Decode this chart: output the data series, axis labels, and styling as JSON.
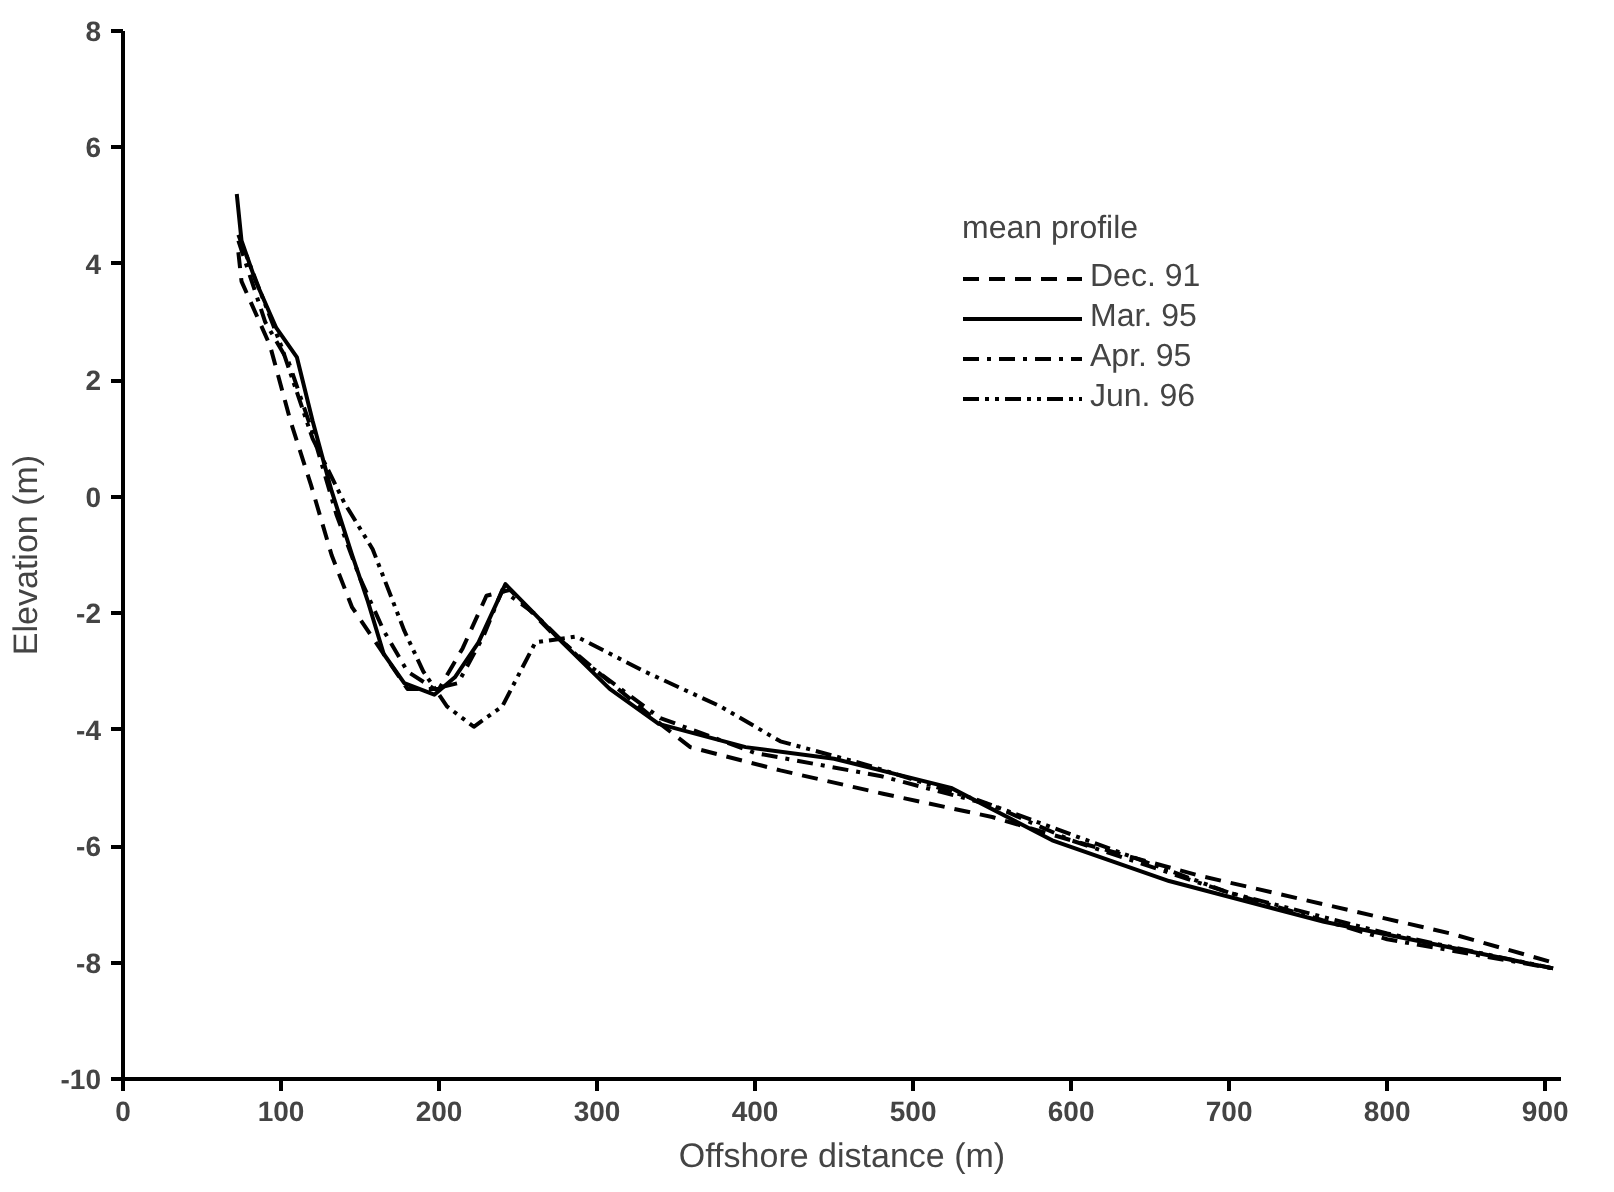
{
  "chart_data": {
    "type": "line",
    "xlabel": "Offshore distance (m)",
    "ylabel": "Elevation (m)",
    "legend_title": "mean profile",
    "xlim": [
      0,
      910
    ],
    "ylim": [
      -10,
      8
    ],
    "xticks": [
      0,
      100,
      200,
      300,
      400,
      500,
      600,
      700,
      800,
      900
    ],
    "yticks": [
      -10,
      -8,
      -6,
      -4,
      -2,
      0,
      2,
      4,
      6,
      8
    ],
    "grid": false,
    "legend": "top right",
    "marker": "none",
    "series": [
      {
        "name": "Dec. 91",
        "color": "#000000",
        "line_style": "dashed",
        "x": [
          73,
          75,
          93,
          106,
          119,
          132,
          145,
          160,
          180,
          200,
          215,
          230,
          245,
          270,
          300,
          340,
          359,
          416,
          481,
          550,
          600,
          680,
          760,
          840,
          905
        ],
        "values": [
          4.2,
          3.7,
          2.6,
          1.3,
          0.2,
          -1.0,
          -1.9,
          -2.5,
          -3.3,
          -3.3,
          -2.6,
          -1.7,
          -1.6,
          -2.3,
          -3.0,
          -3.9,
          -4.3,
          -4.7,
          -5.1,
          -5.5,
          -5.9,
          -6.5,
          -7.0,
          -7.5,
          -8.0
        ]
      },
      {
        "name": "Mar. 95",
        "color": "#000000",
        "line_style": "solid",
        "x": [
          72,
          75,
          84,
          97,
          110,
          120,
          132,
          145,
          155,
          165,
          178,
          197,
          210,
          225,
          242,
          260,
          278,
          308,
          339,
          394,
          450,
          524,
          588,
          662,
          760,
          905
        ],
        "values": [
          5.2,
          4.4,
          3.7,
          2.9,
          2.4,
          1.3,
          0.1,
          -1.0,
          -1.8,
          -2.7,
          -3.2,
          -3.4,
          -3.1,
          -2.5,
          -1.5,
          -2.0,
          -2.5,
          -3.3,
          -3.9,
          -4.3,
          -4.5,
          -5.0,
          -5.9,
          -6.6,
          -7.3,
          -8.1
        ]
      },
      {
        "name": "Apr. 95",
        "color": "#000000",
        "line_style": "dashdot",
        "x": [
          73,
          90,
          105,
          120,
          135,
          150,
          165,
          180,
          197,
          212,
          228,
          240,
          260,
          290,
          340,
          400,
          480,
          550,
          600,
          700,
          800,
          905
        ],
        "values": [
          4.4,
          3.0,
          2.3,
          1.1,
          -0.3,
          -1.4,
          -2.3,
          -3.0,
          -3.3,
          -3.2,
          -2.4,
          -1.6,
          -2.0,
          -2.8,
          -3.8,
          -4.4,
          -4.8,
          -5.3,
          -5.9,
          -6.8,
          -7.6,
          -8.1
        ]
      },
      {
        "name": "Jun. 96",
        "color": "#000000",
        "line_style": "dashdotdot",
        "x": [
          73,
          100,
          120,
          140,
          158,
          178,
          190,
          205,
          222,
          240,
          261,
          287,
          330,
          378,
          416,
          470,
          540,
          600,
          700,
          800,
          905
        ],
        "values": [
          4.5,
          2.6,
          1.0,
          -0.1,
          -0.9,
          -2.3,
          -3.0,
          -3.6,
          -3.95,
          -3.6,
          -2.5,
          -2.4,
          -3.0,
          -3.6,
          -4.2,
          -4.6,
          -5.2,
          -5.8,
          -6.8,
          -7.5,
          -8.1
        ]
      }
    ]
  }
}
